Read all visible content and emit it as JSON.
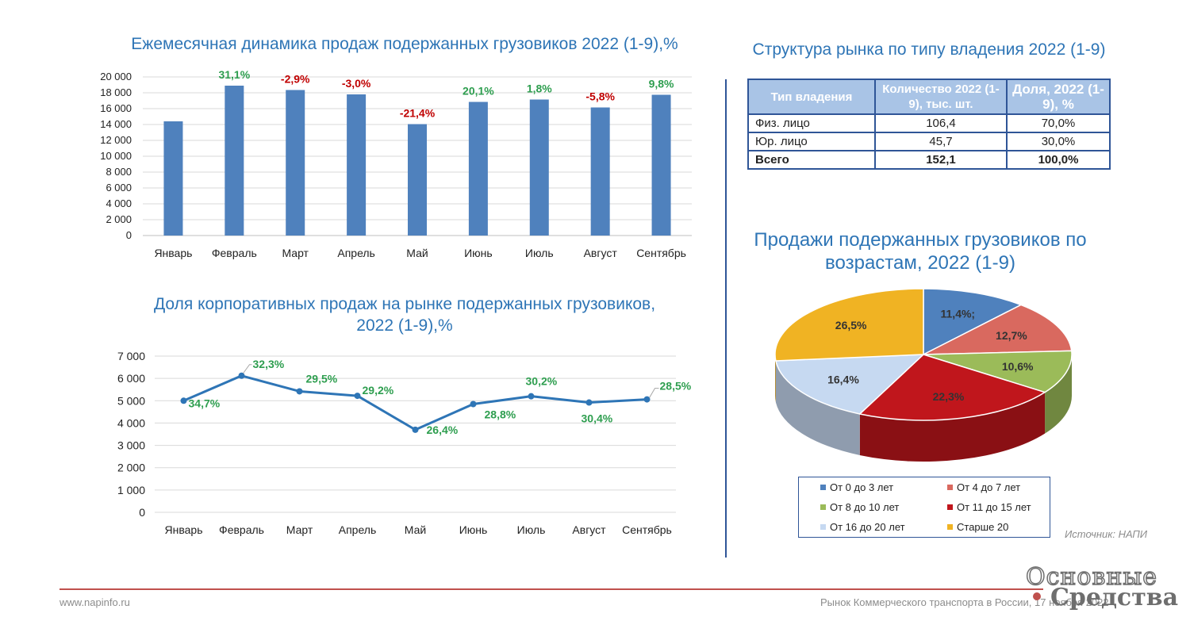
{
  "chart_data": [
    {
      "type": "bar",
      "title": "Ежемесячная динамика продаж подержанных грузовиков 2022 (1-9),%",
      "categories": [
        "Январь",
        "Февраль",
        "Март",
        "Апрель",
        "Май",
        "Июнь",
        "Июль",
        "Август",
        "Сентябрь"
      ],
      "values": [
        14400,
        18900,
        18350,
        17800,
        14050,
        16850,
        17150,
        16150,
        17750
      ],
      "data_labels": [
        "",
        "31,1%",
        "-2,9%",
        "-3,0%",
        "-21,4%",
        "20,1%",
        "1,8%",
        "-5,8%",
        "9,8%"
      ],
      "ylim": [
        0,
        20000
      ],
      "yticks": [
        "0",
        "2 000",
        "4 000",
        "6 000",
        "8 000",
        "10 000",
        "12 000",
        "14 000",
        "16 000",
        "18 000",
        "20 000"
      ],
      "grid": true,
      "bar_color": "#4f81bd",
      "positive_color": "#2e9e4f",
      "negative_color": "#c00000"
    },
    {
      "type": "line",
      "title": "Доля корпоративных продаж на рынке подержанных грузовиков, 2022 (1-9),%",
      "categories": [
        "Январь",
        "Февраль",
        "Март",
        "Апрель",
        "Май",
        "Июнь",
        "Июль",
        "Август",
        "Сентябрь"
      ],
      "values": [
        5000,
        6120,
        5420,
        5220,
        3700,
        4850,
        5200,
        4920,
        5060
      ],
      "data_labels": [
        "34,7%",
        "32,3%",
        "29,5%",
        "29,2%",
        "26,4%",
        "28,8%",
        "30,2%",
        "30,4%",
        "28,5%"
      ],
      "ylim": [
        0,
        7000
      ],
      "yticks": [
        "0",
        "1 000",
        "2 000",
        "3 000",
        "4 000",
        "5 000",
        "6 000",
        "7 000"
      ],
      "grid": true,
      "line_color": "#2e75b6",
      "label_color": "#2e9e4f"
    },
    {
      "type": "pie",
      "title": "Продажи подержанных грузовиков по возрастам, 2022 (1-9)",
      "slices": [
        {
          "name": "От 0 до 3 лет",
          "value": 11.4,
          "label": "11,4%;",
          "color": "#4f81bd"
        },
        {
          "name": "От 4 до 7 лет",
          "value": 12.7,
          "label": "12,7%",
          "color": "#d9695f"
        },
        {
          "name": "От 8 до 10 лет",
          "value": 10.6,
          "label": "10,6%",
          "color": "#9bbb59"
        },
        {
          "name": "От 11 до 15 лет",
          "value": 22.3,
          "label": "22,3%",
          "color": "#c0161c"
        },
        {
          "name": "От 16 до 20 лет",
          "value": 16.4,
          "label": "16,4%",
          "color": "#c6d9f1"
        },
        {
          "name": "Старше 20",
          "value": 26.5,
          "label": "26,5%",
          "color": "#f0b323"
        }
      ],
      "legend_placement": "bottom"
    }
  ],
  "table": {
    "title": "Структура рынка по типу владения 2022 (1-9)",
    "headers": [
      "Тип владения",
      "Количество 2022 (1-9), тыс. шт.",
      "Доля, 2022 (1-9), %"
    ],
    "rows": [
      [
        "Физ. лицо",
        "106,4",
        "70,0%"
      ],
      [
        "Юр. лицо",
        "45,7",
        "30,0%"
      ],
      [
        "Всего",
        "152,1",
        "100,0%"
      ]
    ]
  },
  "source": "Источник: НАПИ",
  "footer": {
    "url": "www.napinfo.ru",
    "note": "Рынок Коммерческого транспорта в России, 17 ноября 2022"
  },
  "brand": {
    "line1": "Основные",
    "line2": "Средства"
  }
}
